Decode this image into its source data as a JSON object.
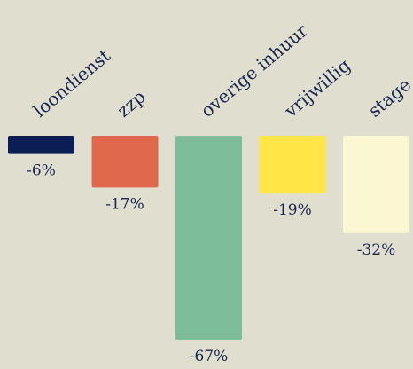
{
  "chart_data": {
    "type": "bar",
    "categories": [
      "loondienst",
      "zzp",
      "overige inhuur",
      "vrijwillig",
      "stage"
    ],
    "values": [
      -6,
      -17,
      -67,
      -19,
      -32
    ],
    "value_labels": [
      "-6%",
      "-17%",
      "-67%",
      "-19%",
      "-32%"
    ],
    "colors": [
      "#0c1d55",
      "#e0694d",
      "#7dbd9a",
      "#ffe545",
      "#fbf7d2"
    ],
    "unit": "%",
    "ylim": [
      -70,
      0
    ],
    "grid": false,
    "axes_visible": false,
    "legend": "none"
  }
}
